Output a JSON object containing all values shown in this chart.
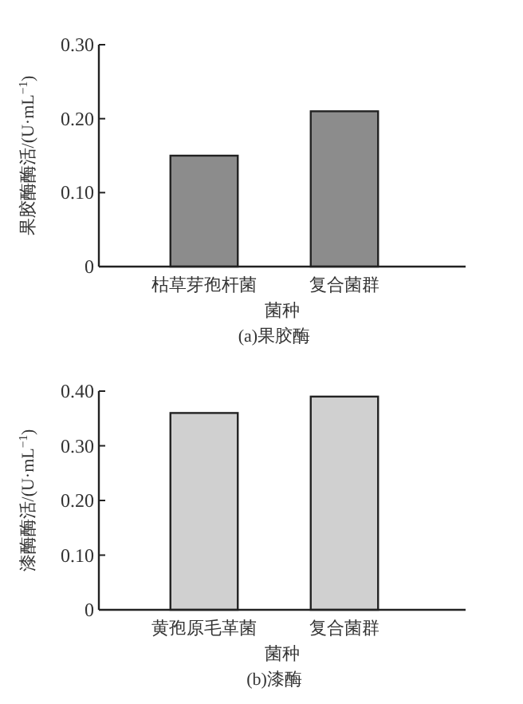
{
  "chart_data": [
    {
      "type": "bar",
      "title": "(a)果胶酶",
      "xlabel": "菌种",
      "ylabel": "果胶酶酶活/(U·mL$^{−1}$)",
      "categories": [
        "枯草芽孢杆菌",
        "复合菌群"
      ],
      "values": [
        0.15,
        0.21
      ],
      "color": "#8c8c8c",
      "ylim": [
        0,
        0.3
      ],
      "yticks": [
        0,
        {
          "value": 0.1,
          "label": "0.10"
        },
        {
          "value": 0.2,
          "label": "0.20"
        },
        {
          "value": 0.3,
          "label": "0.30"
        }
      ]
    },
    {
      "type": "bar",
      "title": "(b)漆酶",
      "xlabel": "菌种",
      "ylabel": "漆酶酶活/(U·mL$^{−1}$)",
      "categories": [
        "黄孢原毛革菌",
        "复合菌群"
      ],
      "values": [
        0.36,
        0.39
      ],
      "color": "#d0d0d0",
      "ylim": [
        0,
        0.4
      ],
      "yticks": [
        0,
        {
          "value": 0.1,
          "label": "0.10"
        },
        {
          "value": 0.2,
          "label": "0.20"
        },
        {
          "value": 0.3,
          "label": "0.30"
        },
        {
          "value": 0.4,
          "label": "0.40"
        }
      ]
    }
  ]
}
